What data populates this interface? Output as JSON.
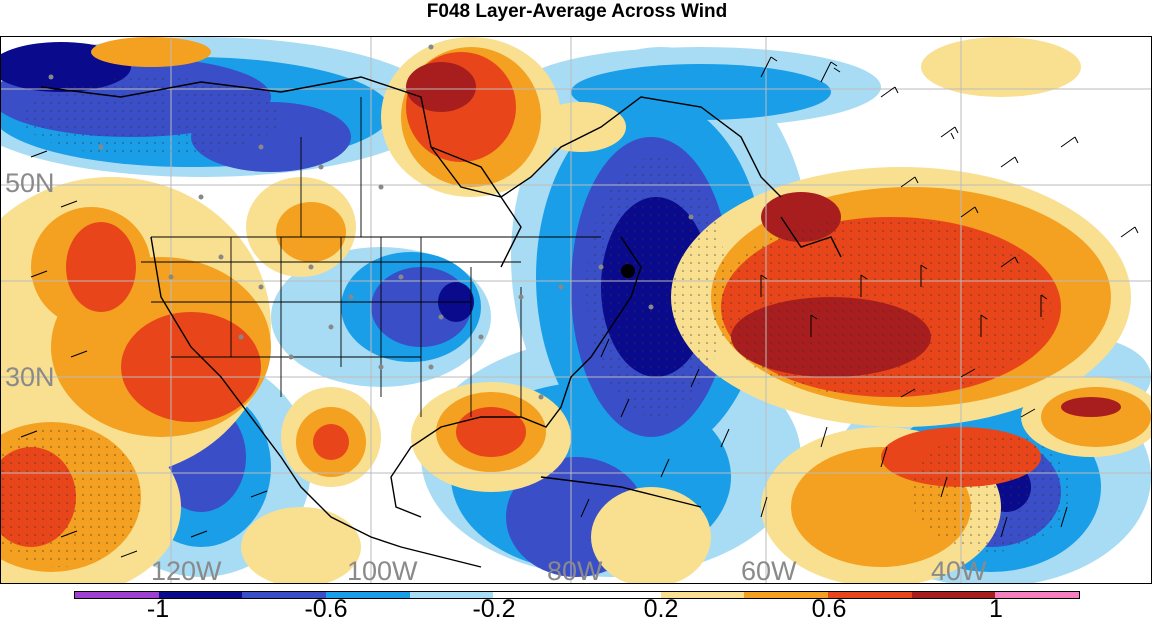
{
  "title": "F048 Layer-Average Across Wind",
  "map": {
    "lat_labels": [
      "50N",
      "30N"
    ],
    "lon_labels": [
      "120W",
      "100W",
      "80W",
      "60W",
      "40W"
    ]
  },
  "colorbar": {
    "colors": [
      "#a040d0",
      "#0a0a8c",
      "#3a4ec8",
      "#1a9ee8",
      "#a8dcf4",
      "#ffffff",
      "#ffffff",
      "#f8e090",
      "#f4a020",
      "#e8461a",
      "#a81e1e",
      "#f480c0"
    ],
    "tick_labels": [
      "-1",
      "-0.6",
      "-0.2",
      "0.2",
      "0.6",
      "1"
    ]
  }
}
